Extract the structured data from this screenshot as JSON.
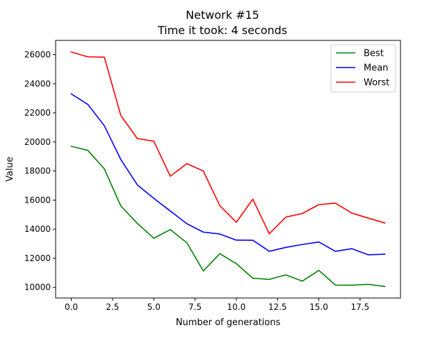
{
  "chart_data": {
    "type": "line",
    "title": "Network #15",
    "subtitle": "Time it took: 4 seconds",
    "xlabel": "Number of generations",
    "ylabel": "Value",
    "xlim": [
      -0.95,
      19.95
    ],
    "ylim": [
      9270,
      26980
    ],
    "xticks": [
      0,
      2.5,
      5,
      7.5,
      10,
      12.5,
      15,
      17.5
    ],
    "xtick_labels": [
      "0.0",
      "2.5",
      "5.0",
      "7.5",
      "10.0",
      "12.5",
      "15.0",
      "17.5"
    ],
    "yticks": [
      10000,
      12000,
      14000,
      16000,
      18000,
      20000,
      22000,
      24000,
      26000
    ],
    "ytick_labels": [
      "10000",
      "12000",
      "14000",
      "16000",
      "18000",
      "20000",
      "22000",
      "24000",
      "26000"
    ],
    "grid": false,
    "legend_position": "upper right",
    "x": [
      0,
      1,
      2,
      3,
      4,
      5,
      6,
      7,
      8,
      9,
      10,
      11,
      12,
      13,
      14,
      15,
      16,
      17,
      18,
      19
    ],
    "series": [
      {
        "name": "Best",
        "color": "#008000",
        "values": [
          19700,
          19420,
          18150,
          15600,
          14400,
          13380,
          13970,
          13070,
          11130,
          12320,
          11630,
          10630,
          10550,
          10860,
          10430,
          11170,
          10160,
          10150,
          10210,
          10060
        ]
      },
      {
        "name": "Mean",
        "color": "#0000ff",
        "values": [
          23300,
          22580,
          21120,
          18790,
          17050,
          16120,
          15250,
          14380,
          13800,
          13670,
          13250,
          13240,
          12480,
          12750,
          12950,
          13120,
          12480,
          12660,
          12240,
          12280
        ]
      },
      {
        "name": "Worst",
        "color": "#ff0000",
        "values": [
          26180,
          25850,
          25830,
          21820,
          20230,
          20050,
          17640,
          18510,
          18000,
          15620,
          14480,
          16060,
          13680,
          14830,
          15080,
          15690,
          15790,
          15110,
          14760,
          14430
        ]
      }
    ]
  }
}
